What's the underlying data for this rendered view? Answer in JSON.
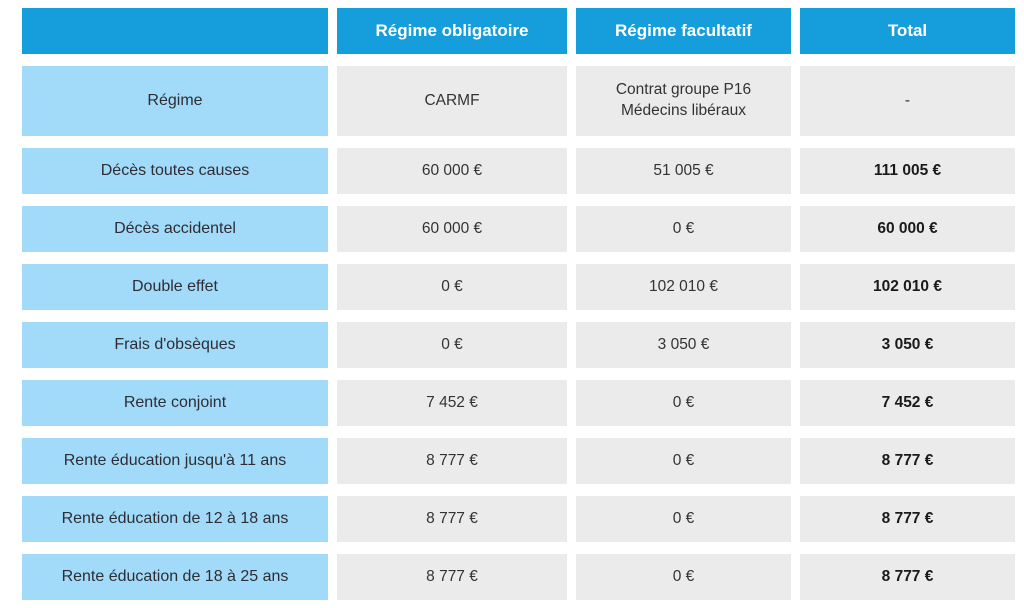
{
  "chart_data": {
    "type": "table",
    "columns": [
      "",
      "Régime obligatoire",
      "Régime facultatif",
      "Total"
    ],
    "rows": [
      [
        "Régime",
        "CARMF",
        "Contrat groupe P16\nMédecins libéraux",
        "-"
      ],
      [
        "Décès toutes causes",
        "60 000 €",
        "51 005 €",
        "111 005 €"
      ],
      [
        "Décès accidentel",
        "60 000 €",
        "0 €",
        "60 000 €"
      ],
      [
        "Double effet",
        "0 €",
        "102 010 €",
        "102 010 €"
      ],
      [
        "Frais d'obsèques",
        "0 €",
        "3 050 €",
        "3 050 €"
      ],
      [
        "Rente conjoint",
        "7 452 €",
        "0 €",
        "7 452 €"
      ],
      [
        "Rente éducation jusqu'à 11 ans",
        "8 777 €",
        "0 €",
        "8 777 €"
      ],
      [
        "Rente éducation de 12 à 18 ans",
        "8 777 €",
        "0 €",
        "8 777 €"
      ],
      [
        "Rente éducation de 18 à 25 ans",
        "8 777 €",
        "0 €",
        "8 777 €"
      ]
    ],
    "layout": {
      "header_position": "top",
      "label_column": "left",
      "grid": "separated-cells"
    }
  },
  "style": {
    "header_bg": "#159edb",
    "header_text": "#ffffff",
    "label_bg": "#a2dbf9",
    "value_bg": "#ebebeb",
    "label_text": "#2d2d33",
    "value_text": "#333333",
    "total_text": "#1a1a1a",
    "canvas_bg": "#ffffff"
  }
}
